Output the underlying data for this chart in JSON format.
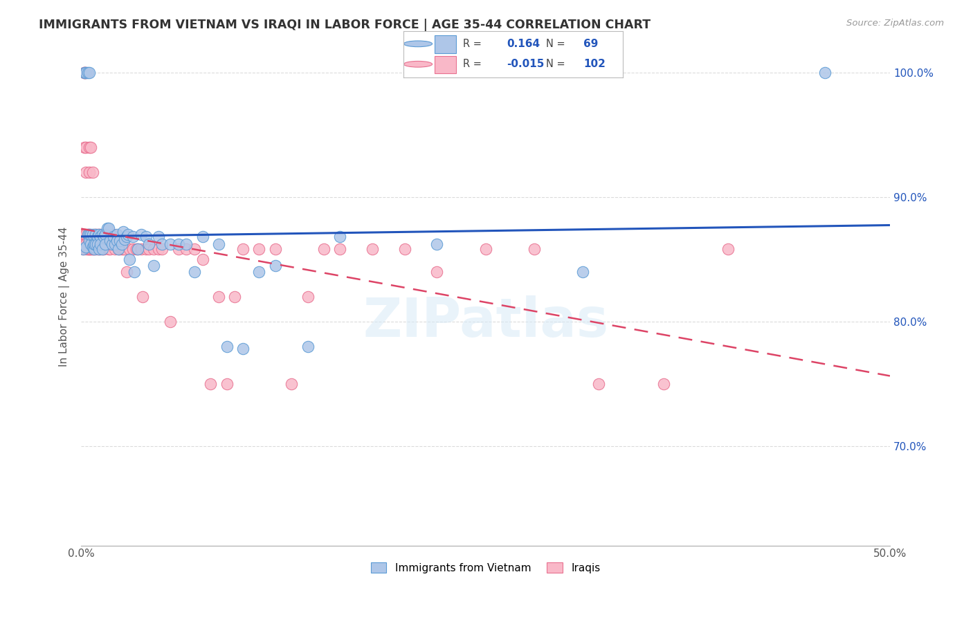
{
  "title": "IMMIGRANTS FROM VIETNAM VS IRAQI IN LABOR FORCE | AGE 35-44 CORRELATION CHART",
  "source": "Source: ZipAtlas.com",
  "ylabel": "In Labor Force | Age 35-44",
  "xlim": [
    0.0,
    0.5
  ],
  "ylim": [
    0.62,
    1.02
  ],
  "xticks": [
    0.0,
    0.1,
    0.2,
    0.3,
    0.4,
    0.5
  ],
  "xticklabels": [
    "0.0%",
    "",
    "",
    "",
    "",
    "50.0%"
  ],
  "yticks": [
    0.7,
    0.8,
    0.9,
    1.0
  ],
  "yticklabels": [
    "70.0%",
    "80.0%",
    "90.0%",
    "100.0%"
  ],
  "vietnam_color": "#aec6e8",
  "iraq_color": "#f9b8c8",
  "vietnam_edge_color": "#5b9bd5",
  "iraq_edge_color": "#e87090",
  "trend_vietnam_color": "#2255bb",
  "trend_iraq_color": "#dd4466",
  "legend_R_vietnam": "0.164",
  "legend_N_vietnam": "69",
  "legend_R_iraq": "-0.015",
  "legend_N_iraq": "102",
  "watermark": "ZIPatlas",
  "vietnam_x": [
    0.001,
    0.002,
    0.003,
    0.003,
    0.004,
    0.004,
    0.005,
    0.005,
    0.005,
    0.006,
    0.006,
    0.007,
    0.007,
    0.008,
    0.008,
    0.008,
    0.009,
    0.009,
    0.01,
    0.01,
    0.011,
    0.011,
    0.012,
    0.012,
    0.013,
    0.013,
    0.014,
    0.015,
    0.015,
    0.016,
    0.017,
    0.018,
    0.019,
    0.02,
    0.021,
    0.022,
    0.022,
    0.023,
    0.024,
    0.025,
    0.026,
    0.027,
    0.028,
    0.029,
    0.03,
    0.032,
    0.033,
    0.035,
    0.037,
    0.04,
    0.042,
    0.045,
    0.048,
    0.05,
    0.055,
    0.06,
    0.065,
    0.07,
    0.075,
    0.085,
    0.09,
    0.1,
    0.11,
    0.12,
    0.14,
    0.16,
    0.22,
    0.31,
    0.46
  ],
  "vietnam_y": [
    0.858,
    1.0,
    1.0,
    0.86,
    0.87,
    1.0,
    0.865,
    1.0,
    0.87,
    0.862,
    0.87,
    0.86,
    0.87,
    0.86,
    0.858,
    0.862,
    0.862,
    0.87,
    0.868,
    0.862,
    0.87,
    0.858,
    0.868,
    0.862,
    0.87,
    0.858,
    0.868,
    0.87,
    0.862,
    0.875,
    0.875,
    0.865,
    0.862,
    0.868,
    0.862,
    0.87,
    0.865,
    0.858,
    0.865,
    0.862,
    0.872,
    0.866,
    0.868,
    0.87,
    0.85,
    0.868,
    0.84,
    0.858,
    0.87,
    0.868,
    0.862,
    0.845,
    0.868,
    0.862,
    0.862,
    0.862,
    0.862,
    0.84,
    0.868,
    0.862,
    0.78,
    0.778,
    0.84,
    0.845,
    0.78,
    0.868,
    0.862,
    0.84,
    1.0
  ],
  "iraq_x": [
    0.001,
    0.001,
    0.001,
    0.002,
    0.002,
    0.002,
    0.002,
    0.002,
    0.002,
    0.003,
    0.003,
    0.003,
    0.003,
    0.003,
    0.003,
    0.004,
    0.004,
    0.004,
    0.004,
    0.004,
    0.005,
    0.005,
    0.005,
    0.005,
    0.005,
    0.005,
    0.006,
    0.006,
    0.006,
    0.006,
    0.007,
    0.007,
    0.007,
    0.007,
    0.008,
    0.008,
    0.008,
    0.009,
    0.009,
    0.01,
    0.01,
    0.01,
    0.011,
    0.011,
    0.012,
    0.012,
    0.012,
    0.013,
    0.013,
    0.014,
    0.014,
    0.015,
    0.015,
    0.016,
    0.017,
    0.017,
    0.018,
    0.019,
    0.02,
    0.021,
    0.022,
    0.023,
    0.024,
    0.025,
    0.026,
    0.027,
    0.028,
    0.03,
    0.032,
    0.034,
    0.035,
    0.037,
    0.038,
    0.04,
    0.042,
    0.045,
    0.048,
    0.05,
    0.055,
    0.06,
    0.065,
    0.07,
    0.075,
    0.08,
    0.085,
    0.09,
    0.095,
    0.1,
    0.11,
    0.12,
    0.13,
    0.14,
    0.15,
    0.16,
    0.18,
    0.2,
    0.22,
    0.25,
    0.28,
    0.32,
    0.36,
    0.4
  ],
  "iraq_y": [
    0.87,
    0.862,
    0.858,
    1.0,
    1.0,
    1.0,
    0.87,
    0.862,
    0.94,
    1.0,
    0.87,
    0.862,
    0.94,
    0.858,
    0.92,
    0.87,
    0.862,
    0.86,
    0.858,
    0.858,
    0.94,
    0.92,
    0.87,
    0.862,
    0.858,
    0.858,
    0.94,
    0.862,
    0.858,
    0.858,
    0.92,
    0.862,
    0.858,
    0.858,
    0.87,
    0.862,
    0.858,
    0.87,
    0.858,
    0.87,
    0.862,
    0.858,
    0.87,
    0.858,
    0.87,
    0.862,
    0.858,
    0.87,
    0.858,
    0.87,
    0.858,
    0.87,
    0.862,
    0.862,
    0.862,
    0.858,
    0.858,
    0.862,
    0.87,
    0.858,
    0.862,
    0.858,
    0.858,
    0.858,
    0.858,
    0.858,
    0.84,
    0.858,
    0.858,
    0.858,
    0.858,
    0.858,
    0.82,
    0.858,
    0.858,
    0.858,
    0.858,
    0.858,
    0.8,
    0.858,
    0.858,
    0.858,
    0.85,
    0.75,
    0.82,
    0.75,
    0.82,
    0.858,
    0.858,
    0.858,
    0.75,
    0.82,
    0.858,
    0.858,
    0.858,
    0.858,
    0.84,
    0.858,
    0.858,
    0.75,
    0.75,
    0.858
  ]
}
